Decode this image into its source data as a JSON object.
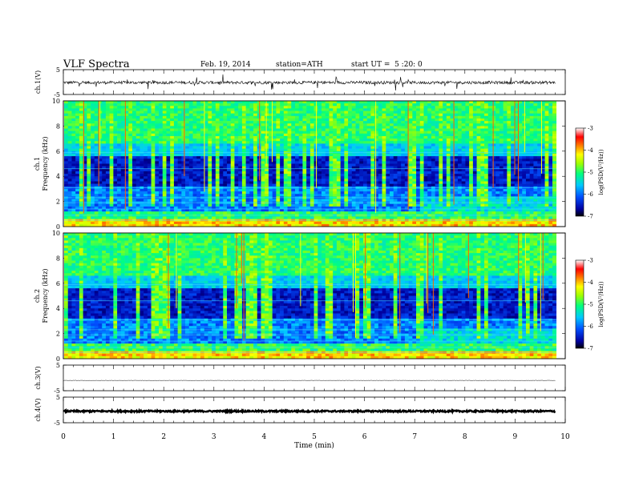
{
  "header": {
    "title": "VLF Spectra",
    "date": "Feb. 19, 2014",
    "station": "station=ATH",
    "start": "start UT =  5 :20: 0"
  },
  "chart_data": [
    {
      "type": "line",
      "name": "ch1-waveform",
      "ylabel": "ch.1(V)",
      "ylim": [
        -5,
        5
      ],
      "y_ticks": [
        "5",
        "-5"
      ],
      "xlim": [
        0,
        10
      ],
      "signal_extent_min": [
        0,
        9.8
      ],
      "baseline": -0.2
    },
    {
      "type": "heatmap",
      "name": "ch1-spectrogram",
      "ylabel_line1": "ch.1",
      "ylabel_line2": "Frequency (kHz)",
      "ylim": [
        0,
        10
      ],
      "y_ticks": [
        "10",
        "8",
        "6",
        "4",
        "2",
        "0"
      ],
      "xlim": [
        0,
        10
      ],
      "colorbar": {
        "label": "log(PSD(V²/Hz))",
        "range": [
          -7,
          -3
        ],
        "ticks": [
          "-3",
          "-4",
          "-5",
          "-6",
          "-7"
        ]
      }
    },
    {
      "type": "heatmap",
      "name": "ch2-spectrogram",
      "ylabel_line1": "ch.2",
      "ylabel_line2": "Frequency (kHz)",
      "ylim": [
        0,
        10
      ],
      "y_ticks": [
        "10",
        "8",
        "6",
        "4",
        "2",
        "0"
      ],
      "xlim": [
        0,
        10
      ],
      "colorbar": {
        "label": "log(PSD(V²/Hz))",
        "range": [
          -7,
          -3
        ],
        "ticks": [
          "-3",
          "-4",
          "-5",
          "-6",
          "-7"
        ]
      }
    },
    {
      "type": "line",
      "name": "ch3-waveform",
      "ylabel": "ch.3(V)",
      "ylim": [
        -5,
        5
      ],
      "y_ticks": [
        "5",
        "-5"
      ],
      "baseline": -1
    },
    {
      "type": "line",
      "name": "ch4-waveform",
      "ylabel": "ch.4(V)",
      "ylim": [
        -5,
        5
      ],
      "y_ticks": [
        "5",
        "-5"
      ],
      "baseline": -0.5,
      "xlabel": "Time (min)",
      "x_ticks": [
        "0",
        "1",
        "2",
        "3",
        "4",
        "5",
        "6",
        "7",
        "8",
        "9",
        "10"
      ]
    }
  ]
}
